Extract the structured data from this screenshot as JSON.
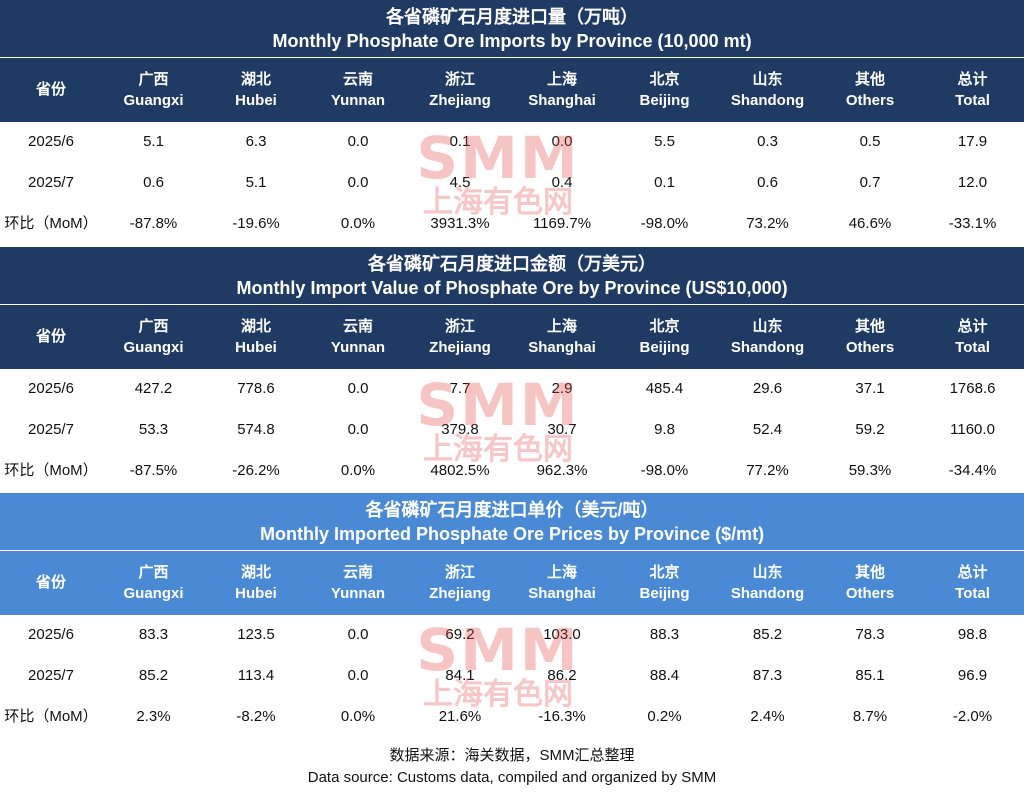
{
  "columns": [
    {
      "cn": "省份",
      "en": ""
    },
    {
      "cn": "广西",
      "en": "Guangxi"
    },
    {
      "cn": "湖北",
      "en": "Hubei"
    },
    {
      "cn": "云南",
      "en": "Yunnan"
    },
    {
      "cn": "浙江",
      "en": "Zhejiang"
    },
    {
      "cn": "上海",
      "en": "Shanghai"
    },
    {
      "cn": "北京",
      "en": "Beijing"
    },
    {
      "cn": "山东",
      "en": "Shandong"
    },
    {
      "cn": "其他",
      "en": "Others"
    },
    {
      "cn": "总计",
      "en": "Total"
    }
  ],
  "tables": [
    {
      "title_cn": "各省磷矿石月度进口量（万吨）",
      "title_en": "Monthly Phosphate Ore Imports by Province (10,000 mt)",
      "rows": [
        {
          "label": "2025/6",
          "values": [
            "5.1",
            "6.3",
            "0.0",
            "0.1",
            "0.0",
            "5.5",
            "0.3",
            "0.5",
            "17.9"
          ]
        },
        {
          "label": "2025/7",
          "values": [
            "0.6",
            "5.1",
            "0.0",
            "4.5",
            "0.4",
            "0.1",
            "0.6",
            "0.7",
            "12.0"
          ]
        },
        {
          "label": "环比（MoM）",
          "values": [
            "-87.8%",
            "-19.6%",
            "0.0%",
            "3931.3%",
            "1169.7%",
            "-98.0%",
            "73.2%",
            "46.6%",
            "-33.1%"
          ]
        }
      ]
    },
    {
      "title_cn": "各省磷矿石月度进口金额（万美元）",
      "title_en": "Monthly Import Value of Phosphate Ore by Province (US$10,000)",
      "rows": [
        {
          "label": "2025/6",
          "values": [
            "427.2",
            "778.6",
            "0.0",
            "7.7",
            "2.9",
            "485.4",
            "29.6",
            "37.1",
            "1768.6"
          ]
        },
        {
          "label": "2025/7",
          "values": [
            "53.3",
            "574.8",
            "0.0",
            "379.8",
            "30.7",
            "9.8",
            "52.4",
            "59.2",
            "1160.0"
          ]
        },
        {
          "label": "环比（MoM）",
          "values": [
            "-87.5%",
            "-26.2%",
            "0.0%",
            "4802.5%",
            "962.3%",
            "-98.0%",
            "77.2%",
            "59.3%",
            "-34.4%"
          ]
        }
      ]
    },
    {
      "title_cn": "各省磷矿石月度进口单价（美元/吨）",
      "title_en": "Monthly Imported Phosphate Ore Prices by Province ($/mt)",
      "rows": [
        {
          "label": "2025/6",
          "values": [
            "83.3",
            "123.5",
            "0.0",
            "69.2",
            "103.0",
            "88.3",
            "85.2",
            "78.3",
            "98.8"
          ]
        },
        {
          "label": "2025/7",
          "values": [
            "85.2",
            "113.4",
            "0.0",
            "84.1",
            "86.2",
            "88.4",
            "87.3",
            "85.1",
            "96.9"
          ]
        },
        {
          "label": "环比（MoM）",
          "values": [
            "2.3%",
            "-8.2%",
            "0.0%",
            "21.6%",
            "-16.3%",
            "0.2%",
            "2.4%",
            "8.7%",
            "-2.0%"
          ]
        }
      ]
    }
  ],
  "watermark": {
    "big": "SMM",
    "small": "上海有色网"
  },
  "source": {
    "cn": "数据来源：海关数据，SMM汇总整理",
    "en": "Data source: Customs data, compiled and organized by SMM"
  },
  "colors": {
    "header_dark": "#1f3a63",
    "header_light": "#4a8ad4",
    "watermark": "#e64646"
  },
  "chart_data": {
    "type": "table",
    "columns": [
      "省份",
      "广西 Guangxi",
      "湖北 Hubei",
      "云南 Yunnan",
      "浙江 Zhejiang",
      "上海 Shanghai",
      "北京 Beijing",
      "山东 Shandong",
      "其他 Others",
      "总计 Total"
    ],
    "tables": [
      {
        "title": "各省磷矿石月度进口量（万吨） / Monthly Phosphate Ore Imports by Province (10,000 mt)",
        "rows": [
          [
            "2025/6",
            5.1,
            6.3,
            0.0,
            0.1,
            0.0,
            5.5,
            0.3,
            0.5,
            17.9
          ],
          [
            "2025/7",
            0.6,
            5.1,
            0.0,
            4.5,
            0.4,
            0.1,
            0.6,
            0.7,
            12.0
          ],
          [
            "环比（MoM）",
            "-87.8%",
            "-19.6%",
            "0.0%",
            "3931.3%",
            "1169.7%",
            "-98.0%",
            "73.2%",
            "46.6%",
            "-33.1%"
          ]
        ]
      },
      {
        "title": "各省磷矿石月度进口金额（万美元） / Monthly Import Value of Phosphate Ore by Province (US$10,000)",
        "rows": [
          [
            "2025/6",
            427.2,
            778.6,
            0.0,
            7.7,
            2.9,
            485.4,
            29.6,
            37.1,
            1768.6
          ],
          [
            "2025/7",
            53.3,
            574.8,
            0.0,
            379.8,
            30.7,
            9.8,
            52.4,
            59.2,
            1160.0
          ],
          [
            "环比（MoM）",
            "-87.5%",
            "-26.2%",
            "0.0%",
            "4802.5%",
            "962.3%",
            "-98.0%",
            "77.2%",
            "59.3%",
            "-34.4%"
          ]
        ]
      },
      {
        "title": "各省磷矿石月度进口单价（美元/吨） / Monthly Imported Phosphate Ore Prices by Province ($/mt)",
        "rows": [
          [
            "2025/6",
            83.3,
            123.5,
            0.0,
            69.2,
            103.0,
            88.3,
            85.2,
            78.3,
            98.8
          ],
          [
            "2025/7",
            85.2,
            113.4,
            0.0,
            84.1,
            86.2,
            88.4,
            87.3,
            85.1,
            96.9
          ],
          [
            "环比（MoM）",
            "2.3%",
            "-8.2%",
            "0.0%",
            "21.6%",
            "-16.3%",
            "0.2%",
            "2.4%",
            "8.7%",
            "-2.0%"
          ]
        ]
      }
    ]
  }
}
